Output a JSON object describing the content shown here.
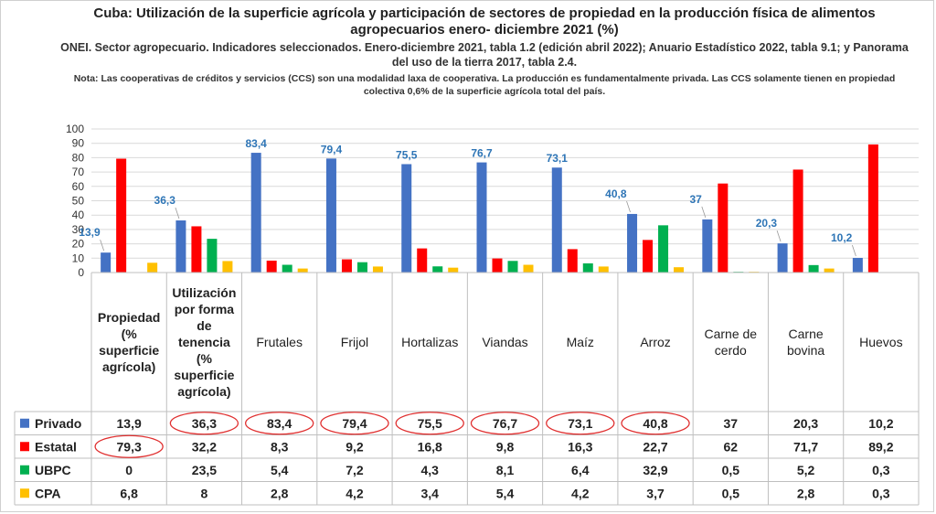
{
  "title": "Cuba: Utilización de la superficie agrícola y participación de sectores de propiedad en la producción física de alimentos agropecuarios enero- diciembre 2021 (%)",
  "source": "ONEI. Sector agropecuario. Indicadores seleccionados. Enero-diciembre 2021, tabla 1.2 (edición abril 2022); Anuario Estadístico 2022, tabla 9.1; y Panorama del uso de la tierra 2017, tabla 2.4.",
  "note": "Nota: Las cooperativas de créditos y servicios (CCS) son una modalidad laxa de cooperativa. La producción es fundamentalmente privada. Las CCS solamente tienen en propiedad colectiva 0,6% de la superficie agrícola total del país.",
  "chart_data": {
    "type": "bar",
    "ylim": [
      0,
      100
    ],
    "yticks": [
      0,
      10,
      20,
      30,
      40,
      50,
      60,
      70,
      80,
      90,
      100
    ],
    "categories": [
      "Propiedad (% superficie agrícola)",
      "Utilización por forma de tenencia (% superficie agrícola)",
      "Frutales",
      "Frijol",
      "Hortalizas",
      "Viandas",
      "Maíz",
      "Arroz",
      "Carne de cerdo",
      "Carne bovina",
      "Huevos"
    ],
    "series": [
      {
        "name": "Privado",
        "color": "#4472C4",
        "values": [
          13.9,
          36.3,
          83.4,
          79.4,
          75.5,
          76.7,
          73.1,
          40.8,
          37,
          20.3,
          10.2
        ],
        "labels": [
          "13,9",
          "36,3",
          "83,4",
          "79,4",
          "75,5",
          "76,7",
          "73,1",
          "40,8",
          "37",
          "20,3",
          "10,2"
        ]
      },
      {
        "name": "Estatal",
        "color": "#FF0000",
        "values": [
          79.3,
          32.2,
          8.3,
          9.2,
          16.8,
          9.8,
          16.3,
          22.7,
          62,
          71.7,
          89.2
        ],
        "labels": [
          "79,3",
          "32,2",
          "8,3",
          "9,2",
          "16,8",
          "9,8",
          "16,3",
          "22,7",
          "62",
          "71,7",
          "89,2"
        ]
      },
      {
        "name": "UBPC",
        "color": "#00B050",
        "values": [
          0,
          23.5,
          5.4,
          7.2,
          4.3,
          8.1,
          6.4,
          32.9,
          0.5,
          5.2,
          0.3
        ],
        "labels": [
          "0",
          "23,5",
          "5,4",
          "7,2",
          "4,3",
          "8,1",
          "6,4",
          "32,9",
          "0,5",
          "5,2",
          "0,3"
        ]
      },
      {
        "name": "CPA",
        "color": "#FFC000",
        "values": [
          6.8,
          8,
          2.8,
          4.2,
          3.4,
          5.4,
          4.2,
          3.7,
          0.5,
          2.8,
          0.3
        ],
        "labels": [
          "6,8",
          "8",
          "2,8",
          "4,2",
          "3,4",
          "5,4",
          "4,2",
          "3,7",
          "0,5",
          "2,8",
          "0,3"
        ]
      }
    ],
    "data_labels_series": "Privado",
    "highlighted_cells": [
      {
        "series": "Privado",
        "category_index": 1
      },
      {
        "series": "Privado",
        "category_index": 2
      },
      {
        "series": "Privado",
        "category_index": 3
      },
      {
        "series": "Privado",
        "category_index": 4
      },
      {
        "series": "Privado",
        "category_index": 5
      },
      {
        "series": "Privado",
        "category_index": 6
      },
      {
        "series": "Privado",
        "category_index": 7
      },
      {
        "series": "Estatal",
        "category_index": 0
      }
    ]
  }
}
